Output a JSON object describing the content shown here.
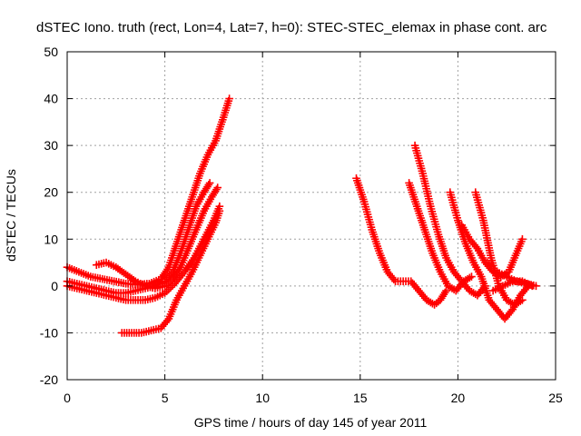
{
  "chart_data": {
    "type": "scatter",
    "title": "dSTEC Iono. truth (rect, Lon=4, Lat=7, h=0): STEC-STEC_elemax in phase cont. arc",
    "xlabel": "GPS time / hours of day 145 of year 2011",
    "ylabel": "dSTEC  / TECUs",
    "xlim": [
      0,
      25
    ],
    "ylim": [
      -20,
      50
    ],
    "xticks": [
      0,
      5,
      10,
      15,
      20,
      25
    ],
    "yticks": [
      -20,
      -10,
      0,
      10,
      20,
      30,
      40,
      50
    ],
    "grid": true,
    "marker": "plus",
    "color": "#ff0000",
    "series": [
      {
        "x": [
          0.0,
          0.6,
          1.2,
          1.8,
          2.4,
          3.0,
          3.6,
          4.2,
          4.8,
          5.2,
          5.6,
          6.0,
          6.4,
          6.8,
          7.2,
          7.6,
          8.0,
          8.3
        ],
        "y": [
          4,
          3,
          2,
          1.5,
          1,
          0.5,
          0.3,
          0.5,
          1.5,
          4,
          9,
          14,
          19,
          24,
          28,
          31,
          36,
          40
        ]
      },
      {
        "x": [
          0.0,
          0.5,
          1.0,
          1.5,
          2.0,
          2.5,
          3.0,
          3.5,
          4.0,
          4.5,
          5.0,
          5.4,
          5.8,
          6.2,
          6.6,
          7.0,
          7.3
        ],
        "y": [
          1,
          0.5,
          0,
          -0.5,
          -1,
          -1.5,
          -1.5,
          -1,
          -0.5,
          0,
          1,
          3,
          7,
          12,
          17,
          20,
          22
        ]
      },
      {
        "x": [
          1.5,
          2.0,
          2.5,
          3.0,
          3.5,
          4.0,
          4.5,
          5.0,
          5.4,
          5.8,
          6.2,
          6.6,
          7.0,
          7.4,
          7.7
        ],
        "y": [
          4.5,
          5,
          4,
          2.5,
          1,
          0,
          -0.5,
          0,
          1.5,
          4,
          8,
          12,
          16,
          19,
          21
        ]
      },
      {
        "x": [
          0.0,
          0.5,
          1.0,
          1.5,
          2.0,
          2.5,
          3.0,
          3.5,
          4.0,
          4.5,
          5.0,
          5.5,
          6.0,
          6.5,
          7.0,
          7.5,
          7.8
        ],
        "y": [
          0,
          -0.5,
          -1,
          -1.5,
          -2,
          -2.5,
          -3,
          -3,
          -3,
          -2.5,
          -1.5,
          0.5,
          3,
          6,
          10,
          14,
          17
        ]
      },
      {
        "x": [
          2.8,
          3.3,
          3.8,
          4.3,
          4.8,
          5.2,
          5.6,
          6.0,
          6.4,
          6.8,
          7.2,
          7.6,
          7.8
        ],
        "y": [
          -10,
          -10,
          -10,
          -9.5,
          -9,
          -7,
          -3,
          0,
          3,
          6.5,
          10,
          13.5,
          16
        ]
      },
      {
        "x": [
          14.8,
          15.2,
          15.6,
          16.0,
          16.4,
          16.8,
          17.2,
          17.6,
          18.0,
          18.4,
          18.8,
          19.1,
          19.4
        ],
        "y": [
          23,
          18,
          12,
          7,
          3,
          1,
          1,
          1,
          -1,
          -3,
          -4,
          -3,
          -1
        ]
      },
      {
        "x": [
          17.5,
          17.9,
          18.3,
          18.7,
          19.1,
          19.5,
          19.9,
          20.3,
          20.7
        ],
        "y": [
          22,
          17,
          12,
          7,
          3,
          0,
          -1,
          1,
          2
        ]
      },
      {
        "x": [
          17.8,
          18.2,
          18.6,
          19.0,
          19.4,
          19.8,
          20.2,
          20.6,
          21.0,
          21.4
        ],
        "y": [
          30,
          24,
          17,
          11,
          6,
          3,
          1,
          -1,
          -2,
          0
        ]
      },
      {
        "x": [
          19.6,
          20.0,
          20.4,
          20.8,
          21.2,
          21.6,
          22.0,
          22.4,
          22.8,
          23.2,
          23.6
        ],
        "y": [
          20,
          14,
          9,
          5,
          2,
          -3,
          -5,
          -7,
          -5,
          -2,
          0
        ]
      },
      {
        "x": [
          20.9,
          21.3,
          21.7,
          22.1,
          22.5,
          22.9,
          23.3
        ],
        "y": [
          20,
          14,
          6,
          0,
          -3,
          -4,
          -3
        ]
      },
      {
        "x": [
          20.2,
          20.6,
          21.0,
          21.4,
          21.8,
          22.2,
          22.6,
          23.0,
          23.3
        ],
        "y": [
          13,
          10,
          8,
          5,
          3,
          2,
          3,
          7,
          10
        ]
      },
      {
        "x": [
          21.5,
          22.0,
          22.5,
          23.0,
          23.5,
          24.0
        ],
        "y": [
          5,
          3,
          2,
          1,
          0.5,
          0
        ]
      },
      {
        "x": [
          21.8,
          22.3,
          22.8,
          23.3,
          23.8
        ],
        "y": [
          -1,
          0,
          1,
          1,
          0
        ]
      }
    ]
  }
}
